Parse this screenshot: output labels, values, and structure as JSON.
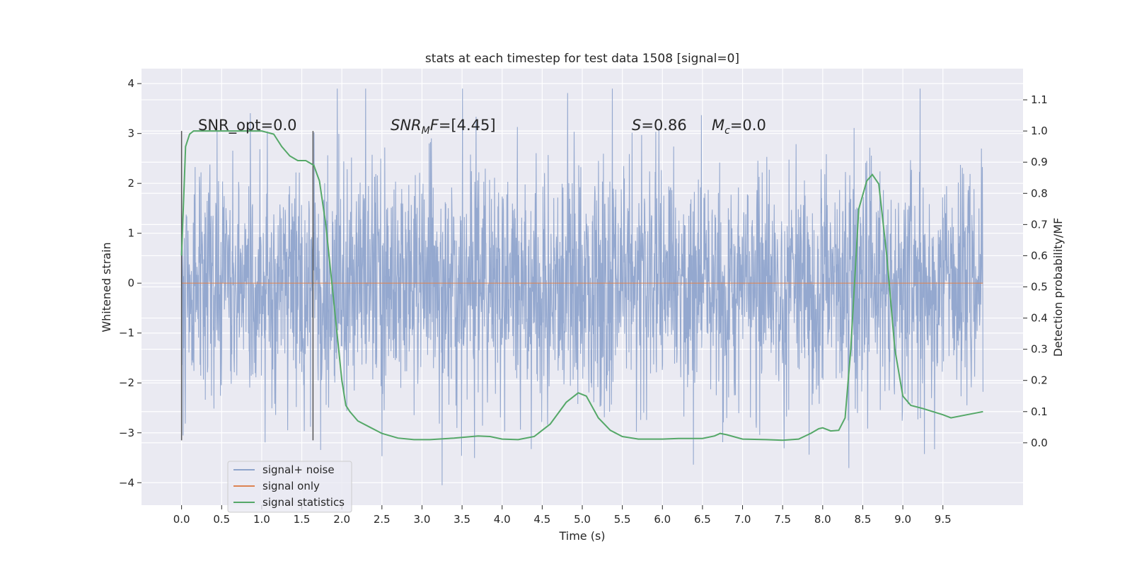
{
  "chart_data": {
    "type": "line",
    "title": "stats at each timestep for test data 1508 [signal=0]",
    "xlabel": "Time (s)",
    "ylabel": "Whitened strain",
    "y2label": "Detection probability/MF",
    "xlim": [
      -0.5,
      10.5
    ],
    "ylim": [
      -4.45,
      4.3
    ],
    "y2lim": [
      -0.2,
      1.2
    ],
    "x_ticks": [
      0.0,
      0.5,
      1.0,
      1.5,
      2.0,
      2.5,
      3.0,
      3.5,
      4.0,
      4.5,
      5.0,
      5.5,
      6.0,
      6.5,
      7.0,
      7.5,
      8.0,
      8.5,
      9.0,
      9.5
    ],
    "x_tick_labels": [
      "0.0",
      "0.5",
      "1.0",
      "1.5",
      "2.0",
      "2.5",
      "3.0",
      "3.5",
      "4.0",
      "4.5",
      "5.0",
      "5.5",
      "6.0",
      "6.5",
      "7.0",
      "7.5",
      "8.0",
      "8.5",
      "9.0",
      "9.5"
    ],
    "y_ticks": [
      -4,
      -3,
      -2,
      -1,
      0,
      1,
      2,
      3,
      4
    ],
    "y_tick_labels": [
      "−4",
      "−3",
      "−2",
      "−1",
      "0",
      "1",
      "2",
      "3",
      "4"
    ],
    "y2_ticks": [
      0.0,
      0.1,
      0.2,
      0.3,
      0.4,
      0.5,
      0.6,
      0.7,
      0.8,
      0.9,
      1.0,
      1.1
    ],
    "y2_tick_labels": [
      "0.0",
      "0.1",
      "0.2",
      "0.3",
      "0.4",
      "0.5",
      "0.6",
      "0.7",
      "0.8",
      "0.9",
      "1.0",
      "1.1"
    ],
    "grid": true,
    "legend_position": "lower-left",
    "colors": {
      "background": "#eaeaf2",
      "grid": "#ffffff",
      "noise": "#8fa4cc",
      "signal": "#dd8452",
      "statistics": "#55a868",
      "vline": "#555555"
    },
    "series": [
      {
        "name": "signal+ noise",
        "axis": "left",
        "style": "dense-noise",
        "x_range": [
          0.0,
          10.0
        ],
        "approx_std": 1.15,
        "y_range": [
          -4.05,
          3.9
        ]
      },
      {
        "name": "signal only",
        "axis": "left",
        "style": "line",
        "x": [
          0.0,
          10.0
        ],
        "y": [
          0.0,
          0.0
        ]
      },
      {
        "name": "signal statistics",
        "axis": "right",
        "style": "line",
        "x": [
          0.0,
          0.05,
          0.1,
          0.15,
          0.2,
          0.3,
          0.5,
          0.8,
          1.0,
          1.15,
          1.25,
          1.35,
          1.45,
          1.55,
          1.65,
          1.72,
          1.8,
          1.9,
          2.0,
          2.05,
          2.1,
          2.2,
          2.35,
          2.5,
          2.7,
          2.9,
          3.1,
          3.4,
          3.7,
          3.85,
          4.0,
          4.2,
          4.4,
          4.6,
          4.8,
          4.95,
          5.05,
          5.2,
          5.35,
          5.5,
          5.7,
          6.0,
          6.2,
          6.5,
          6.65,
          6.72,
          6.8,
          7.0,
          7.3,
          7.5,
          7.7,
          7.85,
          7.95,
          8.0,
          8.1,
          8.2,
          8.28,
          8.35,
          8.45,
          8.55,
          8.62,
          8.7,
          8.8,
          8.9,
          9.0,
          9.1,
          9.25,
          9.5,
          9.6,
          9.8,
          10.0
        ],
        "y": [
          0.6,
          0.95,
          0.99,
          1.0,
          1.0,
          1.0,
          1.0,
          1.0,
          1.0,
          0.99,
          0.95,
          0.92,
          0.905,
          0.905,
          0.89,
          0.84,
          0.7,
          0.45,
          0.2,
          0.12,
          0.1,
          0.07,
          0.05,
          0.03,
          0.015,
          0.01,
          0.01,
          0.015,
          0.022,
          0.02,
          0.012,
          0.01,
          0.02,
          0.06,
          0.13,
          0.16,
          0.15,
          0.08,
          0.04,
          0.02,
          0.012,
          0.012,
          0.014,
          0.014,
          0.022,
          0.03,
          0.026,
          0.012,
          0.01,
          0.008,
          0.012,
          0.03,
          0.045,
          0.048,
          0.038,
          0.04,
          0.08,
          0.3,
          0.75,
          0.84,
          0.86,
          0.83,
          0.6,
          0.3,
          0.15,
          0.12,
          0.11,
          0.09,
          0.08,
          0.09,
          0.1
        ]
      }
    ],
    "vlines": [
      {
        "x": 0.0,
        "ymin": -3.15,
        "ymax": 3.05
      },
      {
        "x": 1.64,
        "ymin": -3.15,
        "ymax": 3.05
      }
    ],
    "annotations": [
      {
        "id": "snr-opt",
        "text": "SNR_opt=0.0",
        "x": 0.2,
        "y": 3.15
      },
      {
        "id": "snr-mf",
        "text": "=[4.45]",
        "x": 2.6,
        "y": 3.15
      },
      {
        "id": "s-value",
        "text": "=0.86",
        "x": 5.6,
        "y": 3.15
      },
      {
        "id": "mc-value",
        "text": "=0.0",
        "x": 6.6,
        "y": 3.15
      }
    ],
    "legend": [
      {
        "label": "signal+ noise",
        "color": "#8fa4cc"
      },
      {
        "label": "signal only",
        "color": "#dd8452"
      },
      {
        "label": "signal statistics",
        "color": "#55a868"
      }
    ]
  }
}
